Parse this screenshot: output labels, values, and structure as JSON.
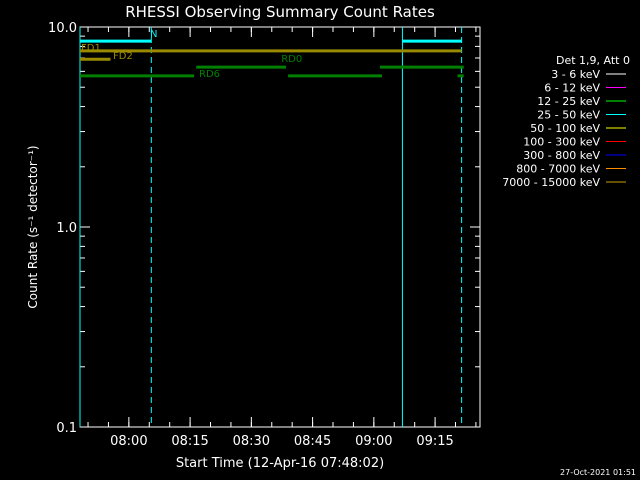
{
  "chart_data": {
    "type": "line",
    "title": "RHESSI Observing Summary Count Rates",
    "xlabel": "Start Time (12-Apr-16 07:48:02)",
    "ylabel": "Count Rate (s⁻¹ detector⁻¹)",
    "y_scale": "log",
    "ylim": [
      0.1,
      10.0
    ],
    "xlim": [
      "07:48:02",
      "09:26:00"
    ],
    "x_ticks": [
      "08:00",
      "08:15",
      "08:30",
      "08:45",
      "09:00",
      "09:15"
    ],
    "y_ticks": [
      "0.1",
      "1.0",
      "10.0"
    ],
    "legend_title": "Det 1,9, Att 0",
    "legend_position": "right",
    "series": [
      {
        "name": "3 - 6 keV",
        "color": "#ffffff"
      },
      {
        "name": "6 - 12 keV",
        "color": "#ff00ff"
      },
      {
        "name": "12 - 25 keV",
        "color": "#00ff00"
      },
      {
        "name": "25 - 50 keV",
        "color": "#00ffff"
      },
      {
        "name": "50 - 100 keV",
        "color": "#ffff00"
      },
      {
        "name": "100 - 300 keV",
        "color": "#ff0000"
      },
      {
        "name": "300 - 800 keV",
        "color": "#0000ff"
      },
      {
        "name": "800 - 7000 keV",
        "color": "#ff8c00"
      },
      {
        "name": "7000 - 15000 keV",
        "color": "#c8a000"
      }
    ],
    "flag_bars": [
      {
        "label": "N",
        "color": "#00ffff",
        "y": 8.5,
        "segments": [
          [
            "07:48:02",
            "08:05:30"
          ],
          [
            "09:07:00",
            "09:21:30"
          ]
        ]
      },
      {
        "label": "FD1",
        "color": "#9a8a00",
        "y": 7.6,
        "segments": [
          [
            "07:48:02",
            "09:21:30"
          ]
        ]
      },
      {
        "label": "FD2",
        "color": "#9a8a00",
        "y": 6.9,
        "segments": [
          [
            "07:48:02",
            "07:55:30"
          ]
        ]
      },
      {
        "label": "RD0",
        "color": "#008000",
        "y": 6.3,
        "segments": [
          [
            "08:16:30",
            "08:38:30"
          ],
          [
            "09:01:30",
            "09:22:00"
          ]
        ]
      },
      {
        "label": "RD6",
        "color": "#008000",
        "y": 5.7,
        "segments": [
          [
            "07:48:02",
            "08:16:00"
          ],
          [
            "08:39:00",
            "09:02:00"
          ],
          [
            "09:20:30",
            "09:22:00"
          ]
        ]
      }
    ],
    "vlines": [
      {
        "time": "07:48:02",
        "style": "solid",
        "color": "#00ffff"
      },
      {
        "time": "08:05:30",
        "style": "dashed",
        "color": "#00ffff"
      },
      {
        "time": "09:07:00",
        "style": "solid",
        "color": "#00ffff"
      },
      {
        "time": "09:21:30",
        "style": "dashed",
        "color": "#00ffff"
      }
    ],
    "footer_timestamp": "27-Oct-2021 01:51"
  }
}
